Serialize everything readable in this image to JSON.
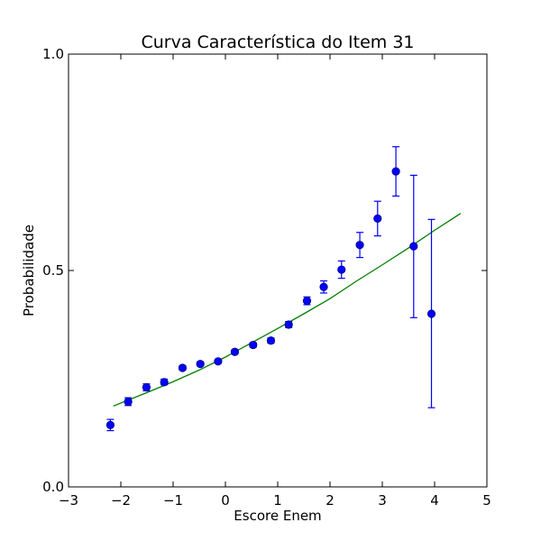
{
  "chart_data": {
    "type": "scatter",
    "title": "Curva Característica do Item 31",
    "xlabel": "Escore Enem",
    "ylabel": "Probabilidade",
    "xlim": [
      -3,
      5
    ],
    "ylim": [
      0.0,
      1.0
    ],
    "x_ticks": [
      "−3",
      "−2",
      "−1",
      "0",
      "1",
      "2",
      "3",
      "4",
      "5"
    ],
    "y_ticks": [
      "0.0",
      "0.5",
      "1.0"
    ],
    "grid": false,
    "legend": "none",
    "series": [
      {
        "kind": "points_with_errorbars",
        "color": "#0000ff",
        "points": [
          {
            "x": -2.2,
            "y": 0.143,
            "lo": 0.13,
            "hi": 0.156
          },
          {
            "x": -1.86,
            "y": 0.197,
            "lo": 0.188,
            "hi": 0.206
          },
          {
            "x": -1.51,
            "y": 0.23,
            "lo": 0.222,
            "hi": 0.238
          },
          {
            "x": -1.17,
            "y": 0.242,
            "lo": 0.236,
            "hi": 0.249
          },
          {
            "x": -0.82,
            "y": 0.275,
            "lo": 0.27,
            "hi": 0.28
          },
          {
            "x": -0.48,
            "y": 0.284,
            "lo": 0.28,
            "hi": 0.289
          },
          {
            "x": -0.14,
            "y": 0.29,
            "lo": 0.286,
            "hi": 0.294
          },
          {
            "x": 0.18,
            "y": 0.312,
            "lo": 0.307,
            "hi": 0.317
          },
          {
            "x": 0.53,
            "y": 0.328,
            "lo": 0.323,
            "hi": 0.333
          },
          {
            "x": 0.87,
            "y": 0.338,
            "lo": 0.332,
            "hi": 0.344
          },
          {
            "x": 1.21,
            "y": 0.375,
            "lo": 0.368,
            "hi": 0.382
          },
          {
            "x": 1.56,
            "y": 0.43,
            "lo": 0.421,
            "hi": 0.439
          },
          {
            "x": 1.88,
            "y": 0.462,
            "lo": 0.448,
            "hi": 0.476
          },
          {
            "x": 2.22,
            "y": 0.502,
            "lo": 0.482,
            "hi": 0.522
          },
          {
            "x": 2.57,
            "y": 0.559,
            "lo": 0.53,
            "hi": 0.588
          },
          {
            "x": 2.91,
            "y": 0.62,
            "lo": 0.58,
            "hi": 0.66
          },
          {
            "x": 3.26,
            "y": 0.729,
            "lo": 0.672,
            "hi": 0.786
          },
          {
            "x": 3.6,
            "y": 0.556,
            "lo": 0.391,
            "hi": 0.72
          },
          {
            "x": 3.94,
            "y": 0.4,
            "lo": 0.183,
            "hi": 0.618
          }
        ]
      },
      {
        "kind": "line",
        "color": "#008000",
        "x": [
          -2.14,
          -1.5,
          -1.0,
          -0.5,
          0.0,
          0.5,
          1.0,
          1.5,
          2.0,
          2.5,
          3.0,
          3.5,
          4.0,
          4.5
        ],
        "y": [
          0.187,
          0.218,
          0.243,
          0.27,
          0.3,
          0.333,
          0.366,
          0.4,
          0.435,
          0.475,
          0.513,
          0.552,
          0.593,
          0.632
        ]
      }
    ]
  }
}
